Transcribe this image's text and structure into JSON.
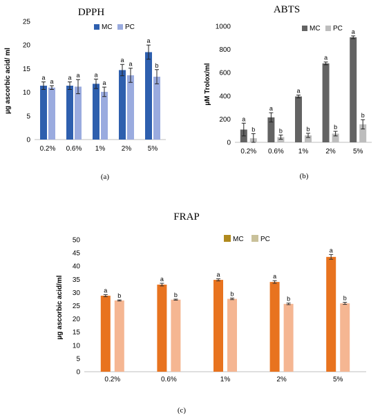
{
  "chart_data": [
    {
      "type": "bar",
      "title": "DPPH",
      "ylabel": "µg ascorbic acid/ ml",
      "categories": [
        "0.2%",
        "0.6%",
        "1%",
        "2%",
        "5%"
      ],
      "ylim": [
        0,
        25
      ],
      "yticks": [
        0,
        5,
        10,
        15,
        20,
        25
      ],
      "legend_position": "top-right",
      "grid": false,
      "series": [
        {
          "name": "MC",
          "values": [
            11.4,
            11.4,
            11.8,
            14.7,
            18.5
          ],
          "errors": [
            0.8,
            0.8,
            1.0,
            1.2,
            1.5
          ],
          "labels": [
            "a",
            "a",
            "a",
            "a",
            "a"
          ],
          "color": "#2e5fae"
        },
        {
          "name": "PC",
          "values": [
            11.0,
            11.2,
            10.1,
            13.6,
            13.3
          ],
          "errors": [
            0.4,
            1.5,
            1.0,
            1.5,
            1.5
          ],
          "labels": [
            "a",
            "a",
            "a",
            "a",
            "b"
          ],
          "color": "#9aabdf"
        }
      ],
      "panel_label": "(a)"
    },
    {
      "type": "bar",
      "title": "ABTS",
      "ylabel": "µM Trolox/ml",
      "categories": [
        "0.2%",
        "0.6%",
        "1%",
        "2%",
        "5%"
      ],
      "ylim": [
        0,
        1000
      ],
      "yticks": [
        0,
        200,
        400,
        600,
        800,
        1000
      ],
      "legend_position": "top-right",
      "grid": false,
      "series": [
        {
          "name": "MC",
          "values": [
            110,
            215,
            395,
            680,
            905
          ],
          "errors": [
            55,
            40,
            12,
            12,
            12
          ],
          "labels": [
            "a",
            "a",
            "a",
            "a",
            "a"
          ],
          "color": "#636363"
        },
        {
          "name": "PC",
          "values": [
            35,
            45,
            60,
            75,
            155
          ],
          "errors": [
            40,
            18,
            18,
            20,
            40
          ],
          "labels": [
            "b",
            "b",
            "b",
            "b",
            "b"
          ],
          "color": "#bdbdbd"
        }
      ],
      "panel_label": "(b)"
    },
    {
      "type": "bar",
      "title": "FRAP",
      "ylabel": "µg ascorbic acid/ml",
      "categories": [
        "0.2%",
        "0.6%",
        "1%",
        "2%",
        "5%"
      ],
      "ylim": [
        0,
        50
      ],
      "yticks": [
        0,
        5,
        10,
        15,
        20,
        25,
        30,
        35,
        40,
        45,
        50
      ],
      "legend_position": "top-right",
      "grid": false,
      "series": [
        {
          "name": "MC",
          "values": [
            28.8,
            33.0,
            34.8,
            34.0,
            43.5
          ],
          "errors": [
            0.4,
            0.5,
            0.4,
            0.5,
            0.9
          ],
          "labels": [
            "a",
            "a",
            "a",
            "a",
            "a"
          ],
          "color": "#e8731f",
          "legend_color": "#b08a1e"
        },
        {
          "name": "PC",
          "values": [
            27.0,
            27.3,
            27.6,
            25.7,
            25.9
          ],
          "errors": [
            0.2,
            0.2,
            0.3,
            0.3,
            0.4
          ],
          "labels": [
            "b",
            "b",
            "b",
            "b",
            "b"
          ],
          "color": "#f5b692",
          "legend_color": "#c9c19a"
        }
      ],
      "panel_label": "(c)"
    }
  ]
}
